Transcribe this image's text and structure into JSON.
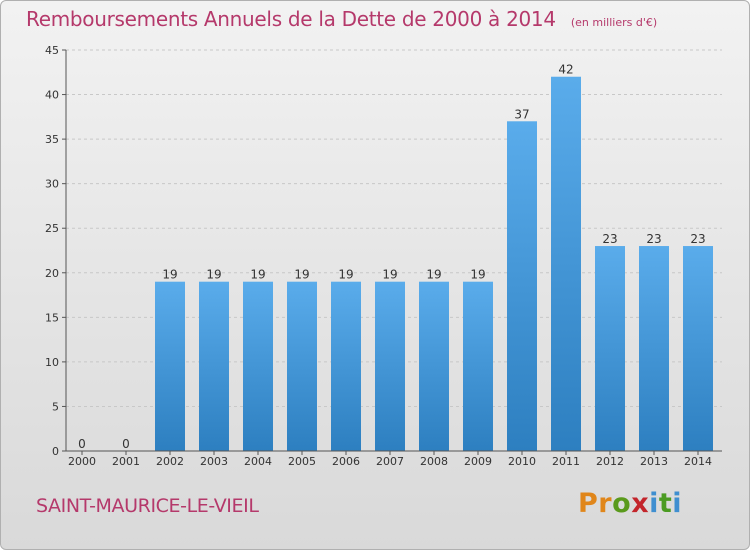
{
  "header": {
    "title": "Remboursements Annuels de la Dette de 2000 à 2014",
    "unit": "(en milliers d'€)"
  },
  "footer": {
    "commune": "SAINT-MAURICE-LE-VIEIL",
    "logo_letters": [
      "P",
      "r",
      "o",
      "x",
      "i",
      "t",
      "i"
    ]
  },
  "colors": {
    "bar_top": "#5aaceb",
    "bar_bottom": "#2d7fc0",
    "title": "#b5396b",
    "grid": "#c8c8c8"
  },
  "chart_data": {
    "type": "bar",
    "title": "Remboursements Annuels de la Dette de 2000 à 2014",
    "subtitle": "(en milliers d'€)",
    "xlabel": "",
    "ylabel": "",
    "categories": [
      "2000",
      "2001",
      "2002",
      "2003",
      "2004",
      "2005",
      "2006",
      "2007",
      "2008",
      "2009",
      "2010",
      "2011",
      "2012",
      "2013",
      "2014"
    ],
    "values": [
      0,
      0,
      19,
      19,
      19,
      19,
      19,
      19,
      19,
      19,
      37,
      42,
      23,
      23,
      23
    ],
    "ylim": [
      0,
      45
    ],
    "yticks": [
      0,
      5,
      10,
      15,
      20,
      25,
      30,
      35,
      40,
      45
    ],
    "grid": "horizontal dashed",
    "data_labels": true
  }
}
